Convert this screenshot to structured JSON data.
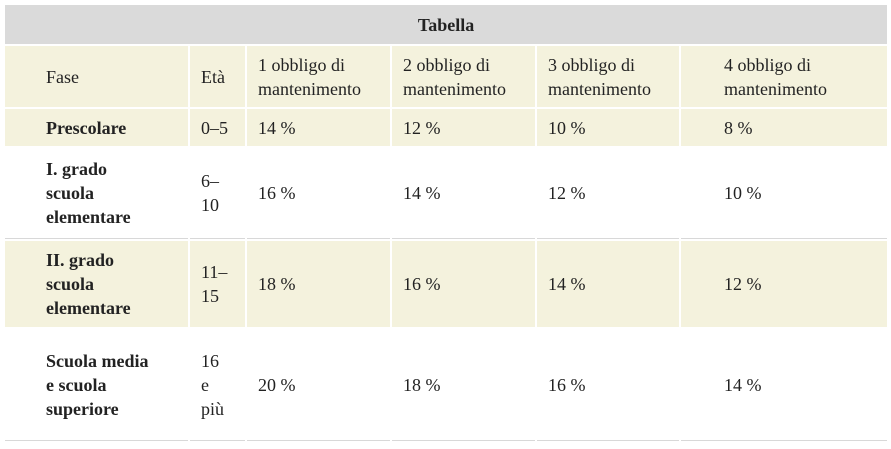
{
  "table": {
    "title": "Tabella",
    "header": [
      "Fase",
      "Età",
      "1 obbligo di mantenimento",
      "2 obbligo di mantenimento",
      "3 obbligo di mantenimento",
      "4 obbligo di mantenimento"
    ],
    "rows": [
      [
        "Prescolare",
        "0–5",
        "14 %",
        "12 %",
        "10 %",
        "8 %"
      ],
      [
        "I. grado scuola elementare",
        "6–10",
        "16 %",
        "14 %",
        "12 %",
        "10 %"
      ],
      [
        "II. grado scuola elementare",
        "11–15",
        "18 %",
        "16 %",
        "14 %",
        "12 %"
      ],
      [
        "Scuola media e scuola superiore",
        "16 e più",
        "20 %",
        "18 %",
        "16 %",
        "14 %"
      ]
    ]
  }
}
